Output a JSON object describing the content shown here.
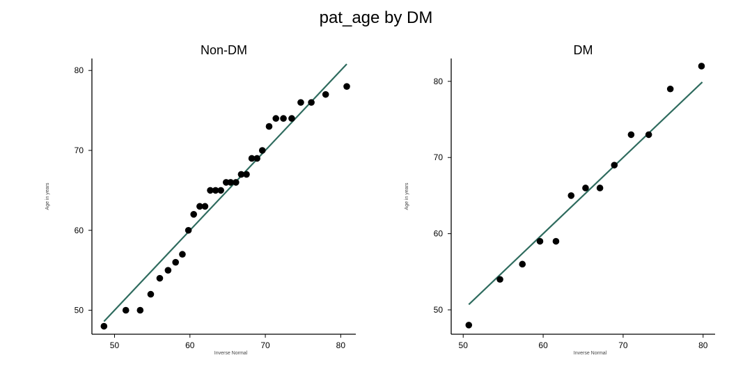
{
  "figure": {
    "title": "pat_age by DM"
  },
  "chart_data": [
    {
      "type": "scatter",
      "title": "Non-DM",
      "xlabel": "Inverse Normal",
      "ylabel": "Age in years",
      "xlim": [
        47,
        82
      ],
      "ylim": [
        47,
        81.5
      ],
      "xticks": [
        50,
        60,
        70,
        80
      ],
      "yticks": [
        50,
        60,
        70,
        80
      ],
      "grid": false,
      "points": [
        [
          48.6,
          48
        ],
        [
          51.5,
          50
        ],
        [
          53.4,
          50
        ],
        [
          54.8,
          52
        ],
        [
          56.0,
          54
        ],
        [
          57.1,
          55
        ],
        [
          58.1,
          56
        ],
        [
          59.0,
          57
        ],
        [
          59.8,
          60
        ],
        [
          60.5,
          62
        ],
        [
          61.3,
          63
        ],
        [
          62.0,
          63
        ],
        [
          62.7,
          65
        ],
        [
          63.4,
          65
        ],
        [
          64.1,
          65
        ],
        [
          64.8,
          66
        ],
        [
          65.4,
          66
        ],
        [
          66.1,
          66
        ],
        [
          66.8,
          67
        ],
        [
          67.5,
          67
        ],
        [
          68.2,
          69
        ],
        [
          68.9,
          69
        ],
        [
          69.6,
          70
        ],
        [
          70.5,
          73
        ],
        [
          71.4,
          74
        ],
        [
          72.4,
          74
        ],
        [
          73.5,
          74
        ],
        [
          74.7,
          76
        ],
        [
          76.1,
          76
        ],
        [
          78.0,
          77
        ],
        [
          80.8,
          78
        ]
      ],
      "fit_line": {
        "x": [
          48.6,
          80.8
        ],
        "y": [
          48.6,
          80.8
        ]
      },
      "marker_color": "#000000",
      "line_color": "#2e6b5e"
    },
    {
      "type": "scatter",
      "title": "DM",
      "xlabel": "Inverse Normal",
      "ylabel": "Age in years",
      "xlim": [
        48.5,
        81.5
      ],
      "ylim": [
        46.8,
        83
      ],
      "xticks": [
        50,
        60,
        70,
        80
      ],
      "yticks": [
        50,
        60,
        70,
        80
      ],
      "grid": false,
      "points": [
        [
          50.7,
          48
        ],
        [
          54.6,
          54
        ],
        [
          57.4,
          56
        ],
        [
          59.6,
          59
        ],
        [
          61.6,
          59
        ],
        [
          63.5,
          65
        ],
        [
          65.3,
          66
        ],
        [
          67.1,
          66
        ],
        [
          68.9,
          69
        ],
        [
          71.0,
          73
        ],
        [
          73.2,
          73
        ],
        [
          75.9,
          79
        ],
        [
          79.8,
          82
        ]
      ],
      "fit_line": {
        "x": [
          50.7,
          79.9
        ],
        "y": [
          50.7,
          79.9
        ]
      },
      "marker_color": "#000000",
      "line_color": "#2e6b5e"
    }
  ]
}
